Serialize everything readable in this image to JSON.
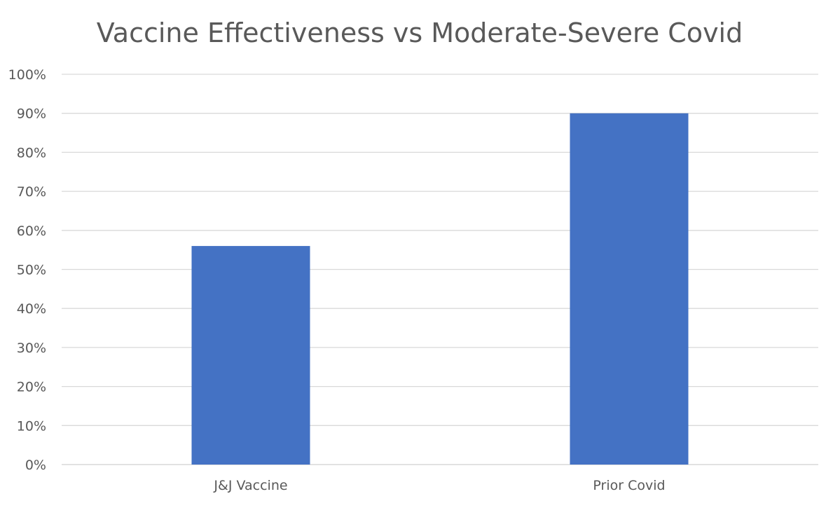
{
  "chart_data": {
    "type": "bar",
    "title": "Vaccine Effectiveness vs Moderate-Severe Covid",
    "categories": [
      "J&J Vaccine",
      "Prior Covid"
    ],
    "values": [
      56,
      90
    ],
    "unit": "%",
    "ylim": [
      0,
      100
    ],
    "ytick_step": 10,
    "yticks": [
      "0%",
      "10%",
      "20%",
      "30%",
      "40%",
      "50%",
      "60%",
      "70%",
      "80%",
      "90%",
      "100%"
    ],
    "xlabel": "",
    "ylabel": "",
    "grid": true,
    "legend": "none",
    "bar_color": "#4472C4"
  }
}
